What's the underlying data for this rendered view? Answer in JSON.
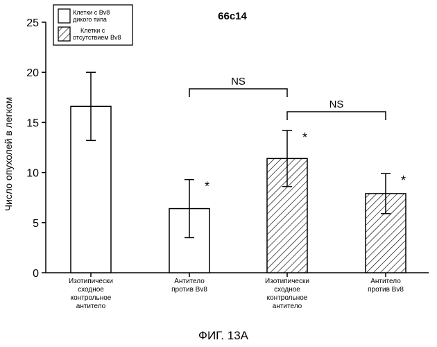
{
  "chart_data": {
    "type": "bar",
    "title": "66c14",
    "ylabel": "Число опухолей в легком",
    "xlabel": "",
    "ylim": [
      0,
      25
    ],
    "yticks": [
      0,
      5,
      10,
      15,
      20,
      25
    ],
    "categories": [
      [
        "Изотипически",
        "сходное",
        "контрольное",
        "антитело"
      ],
      [
        "Антитело",
        "против Bv8"
      ],
      [
        "Изотипически",
        "сходное",
        "контрольное",
        "антитело"
      ],
      [
        "Антитело",
        "против Bv8"
      ]
    ],
    "values": [
      16.6,
      6.4,
      11.4,
      7.9
    ],
    "errors": [
      3.4,
      2.9,
      2.8,
      2.0
    ],
    "bar_groups": [
      "wild",
      "wild",
      "knockout",
      "knockout"
    ],
    "significance_marks": [
      "",
      "*",
      "*",
      "*"
    ],
    "legend": {
      "position": "top-left",
      "items": [
        {
          "key": "wild",
          "lines": [
            "Клетки с Bv8",
            "дикого типа"
          ],
          "pattern": "open"
        },
        {
          "key": "knockout",
          "lines": [
            "Клетки с",
            "отсутствием Bv8"
          ],
          "pattern": "hatched"
        }
      ]
    },
    "brackets": [
      {
        "from": 1,
        "to": 2,
        "label": "NS"
      },
      {
        "from": 2,
        "to": 3,
        "label": "NS"
      }
    ],
    "grid": false
  },
  "figure_caption": "ФИГ. 13А"
}
